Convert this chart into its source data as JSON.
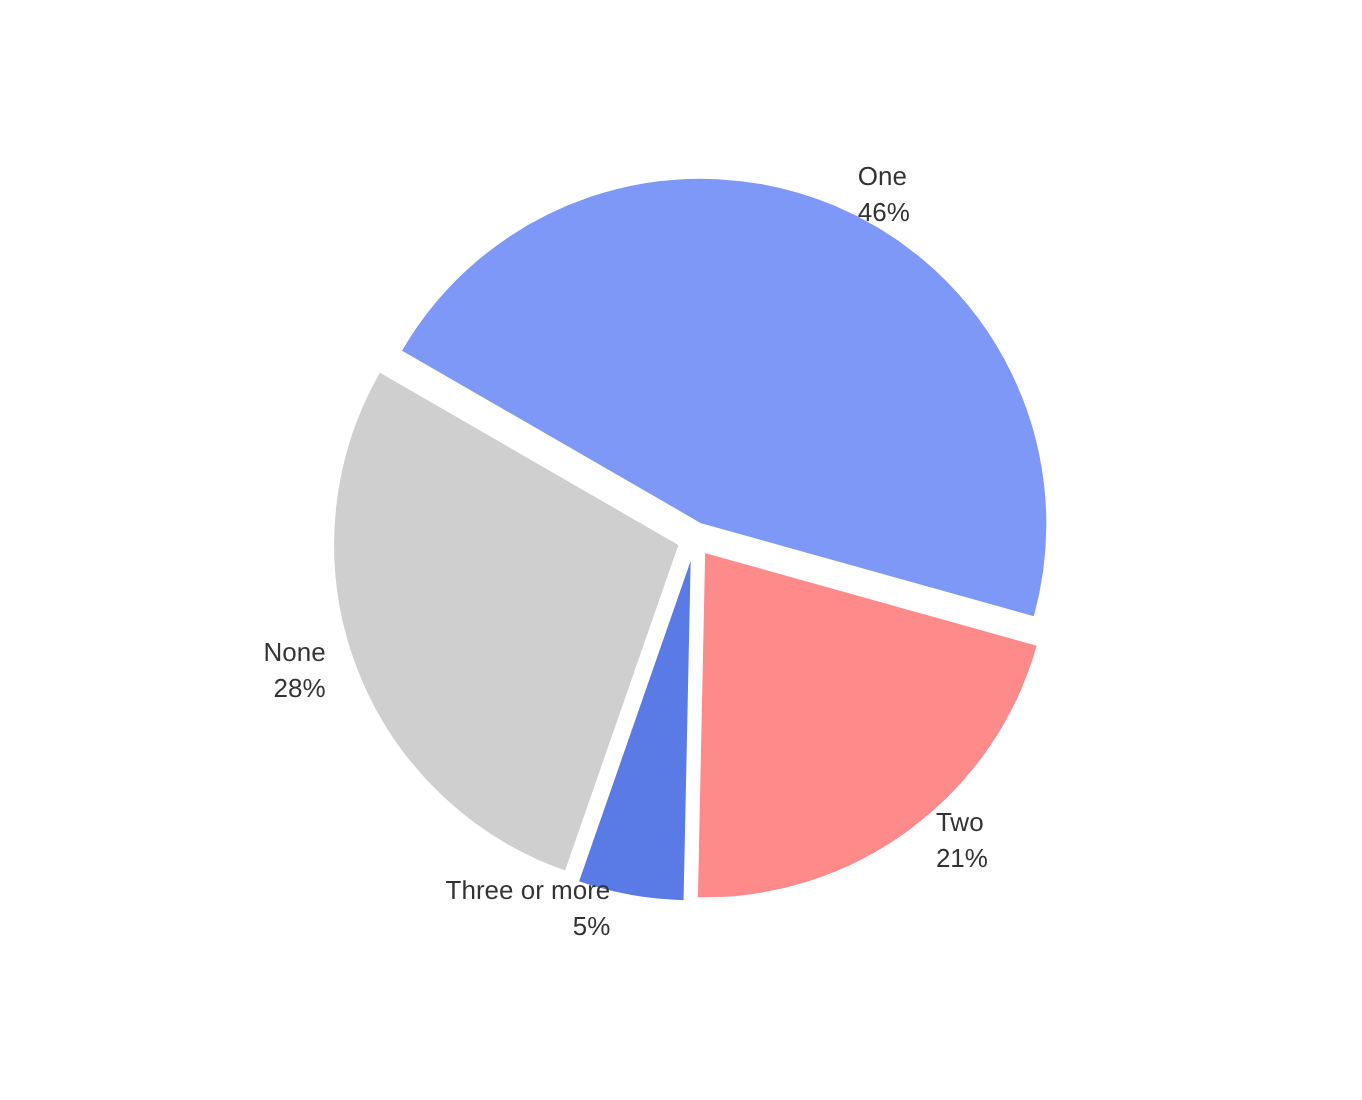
{
  "chart_data": {
    "type": "pie",
    "categories": [
      "One",
      "Two",
      "Three or more",
      "None"
    ],
    "values": [
      46,
      21,
      5,
      28
    ],
    "value_labels": [
      "46%",
      "21%",
      "5%",
      "28%"
    ],
    "colors": [
      "#7d98f7",
      "#ff8a8a",
      "#5a7ae6",
      "#cfcfcf"
    ],
    "legend": false
  }
}
